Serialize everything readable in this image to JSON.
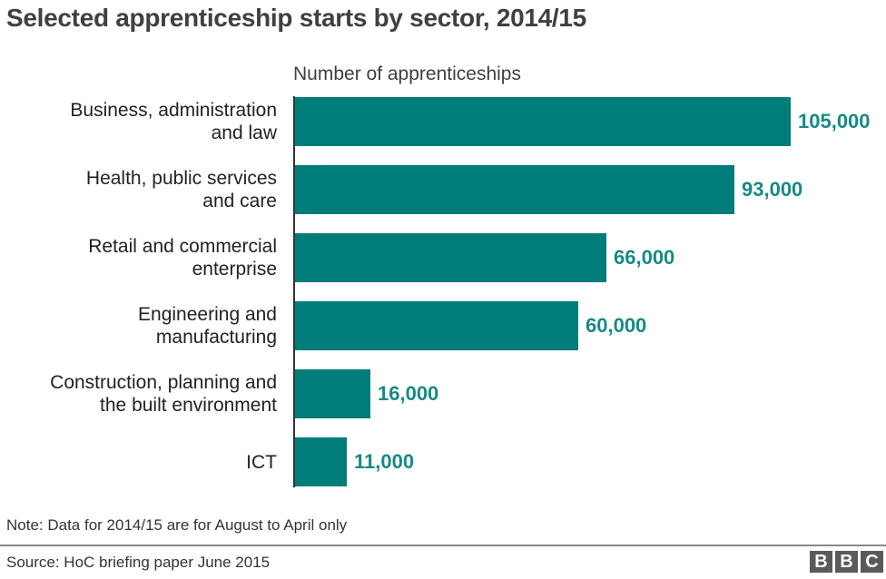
{
  "title": "Selected apprenticeship starts by sector, 2014/15",
  "subtitle": "Number of apprenticeships",
  "note": "Note: Data for 2014/15 are for August to April only",
  "source": "Source: HoC briefing paper June 2015",
  "logo": [
    "B",
    "B",
    "C"
  ],
  "colors": {
    "bar": "#007c7a",
    "value_text": "#168a87"
  },
  "bars": [
    {
      "label": "Business, administration\nand law",
      "value": 105000,
      "display": "105,000"
    },
    {
      "label": "Health, public services\nand care",
      "value": 93000,
      "display": "93,000"
    },
    {
      "label": "Retail and commercial\nenterprise",
      "value": 66000,
      "display": "66,000"
    },
    {
      "label": "Engineering and\nmanufacturing",
      "value": 60000,
      "display": "60,000"
    },
    {
      "label": "Construction, planning and\nthe built environment",
      "value": 16000,
      "display": "16,000"
    },
    {
      "label": "ICT",
      "value": 11000,
      "display": "11,000"
    }
  ],
  "chart_data": {
    "type": "bar",
    "orientation": "horizontal",
    "title": "Selected apprenticeship starts by sector, 2014/15",
    "xlabel": "Number of apprenticeships",
    "ylabel": "",
    "categories": [
      "Business, administration and law",
      "Health, public services and care",
      "Retail and commercial enterprise",
      "Engineering and manufacturing",
      "Construction, planning and the built environment",
      "ICT"
    ],
    "values": [
      105000,
      93000,
      66000,
      60000,
      16000,
      11000
    ],
    "data_labels": [
      "105,000",
      "93,000",
      "66,000",
      "60,000",
      "16,000",
      "11,000"
    ],
    "grid": false,
    "legend": null,
    "annotations": [
      "Note: Data for 2014/15 are for August to April only",
      "Source: HoC briefing paper June 2015"
    ]
  }
}
